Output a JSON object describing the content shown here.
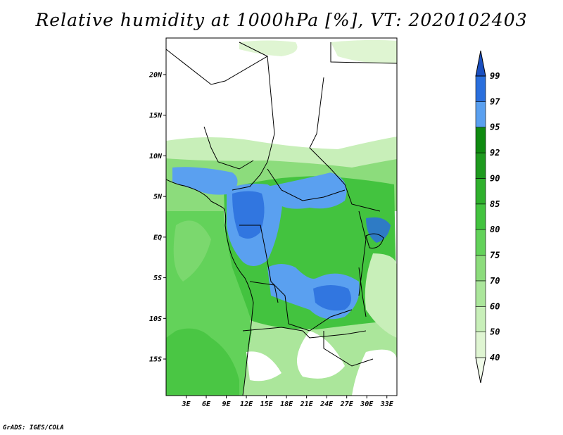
{
  "title": "Relative humidity at 1000hPa [%], VT: 2020102403",
  "credit": "GrADS: IGES/COLA",
  "map": {
    "lat_ticks": [
      "20N",
      "15N",
      "10N",
      "5N",
      "EQ",
      "5S",
      "10S",
      "15S"
    ],
    "lat_values": [
      20,
      15,
      10,
      5,
      0,
      -5,
      -10,
      -15
    ],
    "lon_ticks": [
      "3E",
      "6E",
      "9E",
      "12E",
      "15E",
      "18E",
      "21E",
      "24E",
      "27E",
      "30E",
      "33E"
    ],
    "lon_values": [
      3,
      6,
      9,
      12,
      15,
      18,
      21,
      24,
      27,
      30,
      33
    ],
    "lon_range": [
      0,
      34.5
    ],
    "lat_range": [
      -19.5,
      24.5
    ]
  },
  "colorbar": {
    "labels": [
      "40",
      "50",
      "60",
      "70",
      "75",
      "80",
      "85",
      "90",
      "92",
      "95",
      "97",
      "99"
    ],
    "colors": [
      "#f0fbe9",
      "#dff5d2",
      "#c8efb9",
      "#abe69b",
      "#8cdc7c",
      "#63d25a",
      "#43c33f",
      "#2fb02d",
      "#1e9a1e",
      "#0f8a10",
      "#5aa0f0",
      "#2a6fdd",
      "#1a4fc0"
    ]
  }
}
